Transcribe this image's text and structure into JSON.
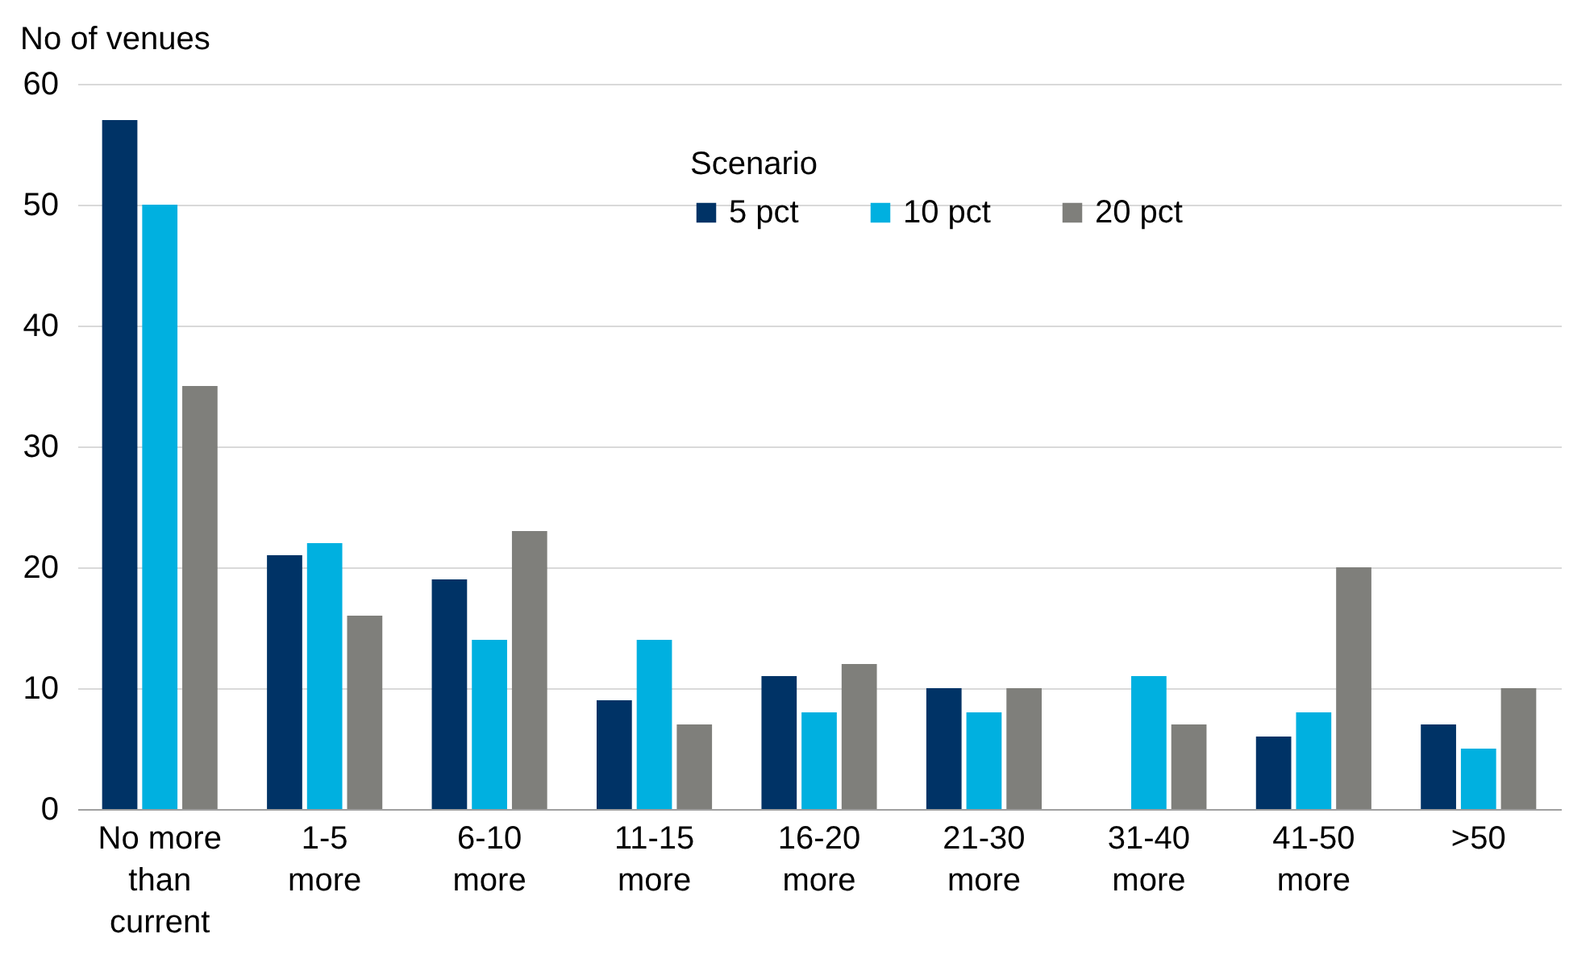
{
  "chart_data": {
    "type": "bar",
    "ylabel": "No of venues",
    "legend_title": "Scenario",
    "categories": [
      "No more than current",
      "1-5 more",
      "6-10 more",
      "11-15 more",
      "16-20 more",
      "21-30 more",
      "31-40 more",
      "41-50 more",
      ">50"
    ],
    "series": [
      {
        "name": "5 pct",
        "color": "#003366",
        "values": [
          57,
          21,
          19,
          9,
          11,
          10,
          0,
          6,
          7
        ]
      },
      {
        "name": "10 pct",
        "color": "#00b0e0",
        "values": [
          50,
          22,
          14,
          14,
          8,
          8,
          11,
          8,
          5
        ]
      },
      {
        "name": "20 pct",
        "color": "#7f7f7b",
        "values": [
          35,
          16,
          23,
          7,
          12,
          10,
          7,
          20,
          10
        ]
      }
    ],
    "ylim": [
      0,
      60
    ],
    "yticks": [
      0,
      10,
      20,
      30,
      40,
      50,
      60
    ],
    "grid": "y",
    "legend": "top right"
  }
}
